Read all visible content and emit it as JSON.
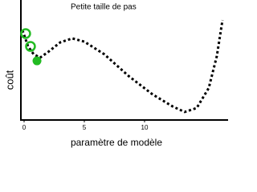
{
  "chart_data": {
    "type": "line",
    "title": "Petite taille de pas",
    "xlabel": "paramètre de modèle",
    "ylabel": "coût",
    "xlim": [
      -0.3,
      16.9
    ],
    "ylim": [
      0,
      10
    ],
    "xticks": [
      0,
      5,
      10
    ],
    "x": [
      -0.13,
      0.33,
      0.8,
      1.33,
      2,
      3,
      4,
      5,
      6.67,
      8.67,
      10.67,
      12.33,
      13.33,
      14.33,
      15.33,
      16,
      16.47
    ],
    "values": [
      7.47,
      6.13,
      5.47,
      5.2,
      5.67,
      6.47,
      6.8,
      6.53,
      5.47,
      3.67,
      2.13,
      1.13,
      0.67,
      1,
      2.67,
      5.33,
      8.33
    ],
    "color": "#000000",
    "markers": {
      "x": [
        0.13,
        0.53,
        1.07
      ],
      "values": [
        7.2,
        6.13,
        4.93
      ],
      "filled": [
        false,
        false,
        true
      ],
      "color": "#22bb22"
    }
  }
}
